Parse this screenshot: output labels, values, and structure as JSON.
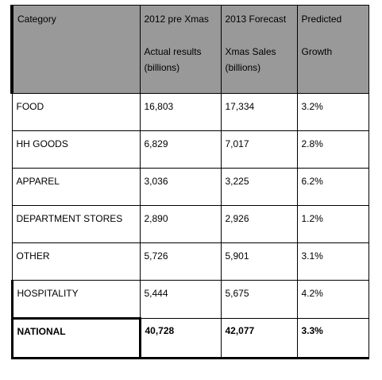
{
  "table": {
    "header": [
      [
        "Category"
      ],
      [
        "2012 pre Xmas",
        "Actual results (billions)"
      ],
      [
        "2013 Forecast",
        "Xmas Sales (billions)"
      ],
      [
        "Predicted",
        "Growth"
      ]
    ],
    "rows": [
      [
        "FOOD",
        "16,803",
        "17,334",
        "3.2%"
      ],
      [
        "HH GOODS",
        "6,829",
        "7,017",
        "2.8%"
      ],
      [
        "APPAREL",
        "3,036",
        "3,225",
        "6.2%"
      ],
      [
        "DEPARTMENT STORES",
        "2,890",
        "2,926",
        "1.2%"
      ],
      [
        "OTHER",
        "5,726",
        "5,901",
        "3.1%"
      ],
      [
        "HOSPITALITY",
        "5,444",
        "5,675",
        "4.2%"
      ],
      [
        "NATIONAL",
        "40,728",
        "42,077",
        "3.3%"
      ]
    ]
  }
}
